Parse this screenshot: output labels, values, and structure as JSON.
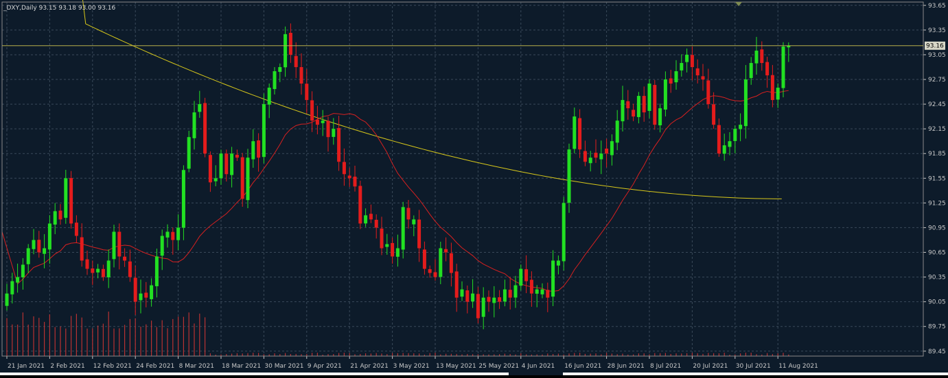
{
  "chart_data": {
    "type": "candlestick",
    "symbol": "_DXY,Daily",
    "ohlc_text": "93.15 93.18 93.00 93.16",
    "title": "_DXY,Daily  93.15 93.18 93.00 93.16",
    "current_price": 93.16,
    "current_price_label": "93.16",
    "ylim": [
      89.39,
      93.69
    ],
    "y_ticks": [
      93.65,
      93.35,
      93.05,
      92.75,
      92.45,
      92.15,
      91.85,
      91.55,
      91.25,
      90.95,
      90.65,
      90.35,
      90.05,
      89.75,
      89.45
    ],
    "y_tick_labels": [
      "93.65",
      "93.35",
      "93.05",
      "92.75",
      "92.45",
      "92.15",
      "91.85",
      "91.55",
      "91.25",
      "90.95",
      "90.65",
      "90.35",
      "90.05",
      "89.75",
      "89.45"
    ],
    "x_labels": [
      {
        "label": "21 Jan 2021",
        "bar": 0
      },
      {
        "label": "2 Feb 2021",
        "bar": 8
      },
      {
        "label": "12 Feb 2021",
        "bar": 16
      },
      {
        "label": "24 Feb 2021",
        "bar": 24
      },
      {
        "label": "8 Mar 2021",
        "bar": 32
      },
      {
        "label": "18 Mar 2021",
        "bar": 40
      },
      {
        "label": "30 Mar 2021",
        "bar": 48
      },
      {
        "label": "9 Apr 2021",
        "bar": 56
      },
      {
        "label": "21 Apr 2021",
        "bar": 64
      },
      {
        "label": "3 May 2021",
        "bar": 72
      },
      {
        "label": "13 May 2021",
        "bar": 80
      },
      {
        "label": "25 May 2021",
        "bar": 88
      },
      {
        "label": "4 Jun 2021",
        "bar": 96
      },
      {
        "label": "16 Jun 2021",
        "bar": 104
      },
      {
        "label": "28 Jun 2021",
        "bar": 112
      },
      {
        "label": "8 Jul 2021",
        "bar": 120
      },
      {
        "label": "20 Jul 2021",
        "bar": 128
      },
      {
        "label": "30 Jul 2021",
        "bar": 136
      },
      {
        "label": "11 Aug 2021",
        "bar": 144
      }
    ],
    "close": [
      90.15,
      90.3,
      90.35,
      90.5,
      90.7,
      90.8,
      90.65,
      90.7,
      91.0,
      91.15,
      91.05,
      91.55,
      91.0,
      90.85,
      90.55,
      90.45,
      90.4,
      90.45,
      90.35,
      90.55,
      90.9,
      90.6,
      90.55,
      90.35,
      90.05,
      90.15,
      90.1,
      90.25,
      90.6,
      90.85,
      90.9,
      90.8,
      90.95,
      91.65,
      92.05,
      92.35,
      92.45,
      91.85,
      91.5,
      91.55,
      91.85,
      91.6,
      91.85,
      91.8,
      91.3,
      91.8,
      92.0,
      91.8,
      92.45,
      92.65,
      92.85,
      92.9,
      93.3,
      93.05,
      92.9,
      92.7,
      92.5,
      92.25,
      92.2,
      92.25,
      92.05,
      92.15,
      91.75,
      91.6,
      91.55,
      91.45,
      91.0,
      91.1,
      91.05,
      90.95,
      90.7,
      90.75,
      90.6,
      90.7,
      91.2,
      91.05,
      91.05,
      90.7,
      90.45,
      90.4,
      90.35,
      90.7,
      90.65,
      90.4,
      90.1,
      90.2,
      90.05,
      90.15,
      89.85,
      90.1,
      90.05,
      90.1,
      90.05,
      90.2,
      90.1,
      90.25,
      90.45,
      90.3,
      90.15,
      90.2,
      90.2,
      90.1,
      90.55,
      90.55,
      91.25,
      91.9,
      92.3,
      91.9,
      91.75,
      91.8,
      91.8,
      91.85,
      91.85,
      92.0,
      92.25,
      92.5,
      92.4,
      92.3,
      92.55,
      92.35,
      92.7,
      92.2,
      92.4,
      92.75,
      92.7,
      92.85,
      92.95,
      93.05,
      92.9,
      92.8,
      92.75,
      92.45,
      92.2,
      91.85,
      91.95,
      92.0,
      92.15,
      92.2,
      92.75,
      92.95,
      93.1,
      92.95,
      92.8,
      92.5,
      92.65,
      93.15,
      93.16
    ]
  },
  "colors": {
    "background": "#0d1b2a",
    "grid": "#3a4a5a",
    "bull": "#22e022",
    "bear": "#e41c1c",
    "ma_slow": "#d8c81a",
    "ma_fast": "#d82020",
    "volume": "#b83232",
    "axis_text": "#c8c8c8",
    "price_line": "#b8b04a"
  }
}
